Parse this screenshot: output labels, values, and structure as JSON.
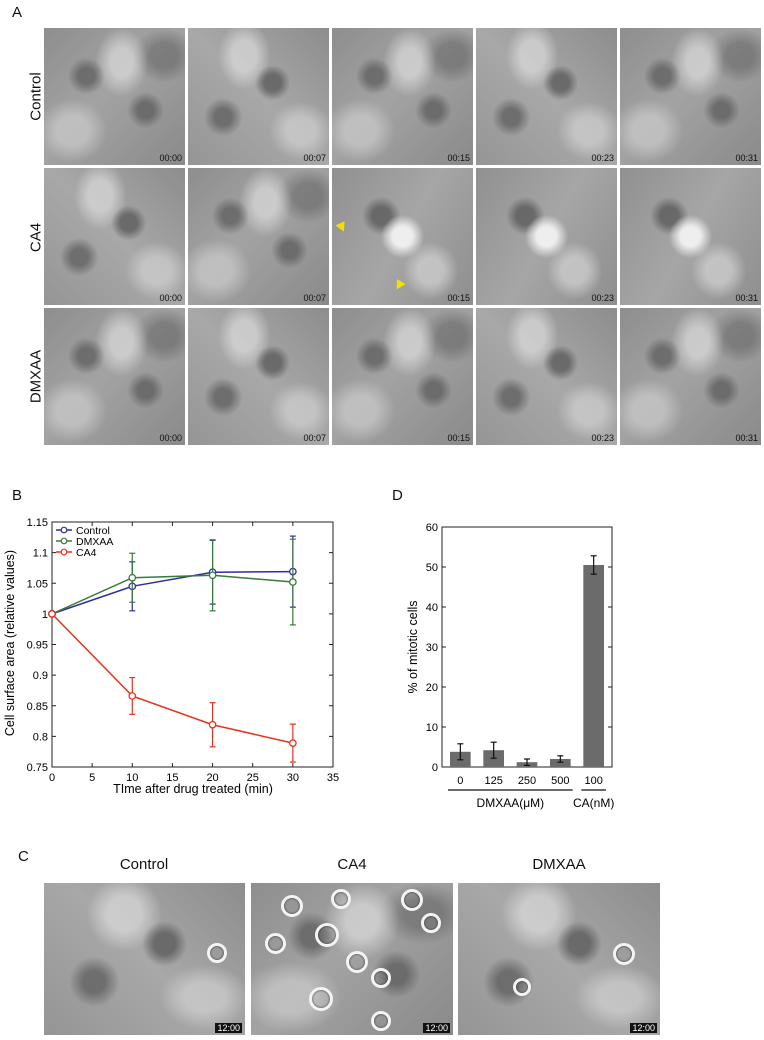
{
  "panel_a": {
    "letter": "A",
    "rows": [
      {
        "label": "Control",
        "timestamps": [
          "00:00",
          "00:07",
          "00:15",
          "00:23",
          "00:31"
        ]
      },
      {
        "label": "CA4",
        "timestamps": [
          "00:00",
          "00:07",
          "00:15",
          "00:23",
          "00:31"
        ]
      },
      {
        "label": "DMXAA",
        "timestamps": [
          "00:00",
          "00:07",
          "00:15",
          "00:23",
          "00:31"
        ]
      }
    ],
    "arrow_color": "#f2e000"
  },
  "panel_b": {
    "letter": "B",
    "chart_data": {
      "type": "line",
      "xlabel": "TIme after drug treated (min)",
      "ylabel": "Cell surface area (relative values)",
      "xlim": [
        0,
        35
      ],
      "ylim": [
        0.75,
        1.15
      ],
      "xticks": [
        "0",
        "5",
        "10",
        "15",
        "20",
        "25",
        "30",
        "35"
      ],
      "yticks": [
        "0.75",
        "0.8",
        "0.85",
        "0.9",
        "0.95",
        "1",
        "1.05",
        "1.1",
        "1.15"
      ],
      "x": [
        0,
        10,
        20,
        30
      ],
      "legend_position": "top-left",
      "series": [
        {
          "name": "Control",
          "color": "#2b2f9e",
          "values": [
            1.0,
            1.045,
            1.068,
            1.069
          ],
          "err": [
            0,
            0.04,
            0.052,
            0.058
          ]
        },
        {
          "name": "DMXAA",
          "color": "#3a7a3a",
          "values": [
            1.0,
            1.059,
            1.063,
            1.052
          ],
          "err": [
            0,
            0.04,
            0.058,
            0.07
          ]
        },
        {
          "name": "CA4",
          "color": "#e8321c",
          "values": [
            1.0,
            0.866,
            0.819,
            0.789
          ],
          "err": [
            0,
            0.03,
            0.036,
            0.031
          ]
        }
      ]
    }
  },
  "panel_d": {
    "letter": "D",
    "chart_data": {
      "type": "bar",
      "ylabel": "% of mitotic cells",
      "ylim": [
        0,
        60
      ],
      "yticks": [
        "0",
        "10",
        "20",
        "30",
        "40",
        "50",
        "60"
      ],
      "categories": [
        "0",
        "125",
        "250",
        "500",
        "100"
      ],
      "values": [
        3.8,
        4.2,
        1.2,
        2.0,
        50.5
      ],
      "err": [
        2.0,
        2.0,
        0.8,
        0.8,
        2.3
      ],
      "bar_color": "#6b6b6b",
      "groups": [
        {
          "label": "DMXAA(μM)",
          "from": 0,
          "to": 3
        },
        {
          "label": "CA(nM)",
          "from": 4,
          "to": 4
        }
      ]
    }
  },
  "panel_c": {
    "letter": "C",
    "columns": [
      {
        "title": "Control",
        "timestamp": "12:00"
      },
      {
        "title": "CA4",
        "timestamp": "12:00"
      },
      {
        "title": "DMXAA",
        "timestamp": "12:00"
      }
    ]
  }
}
